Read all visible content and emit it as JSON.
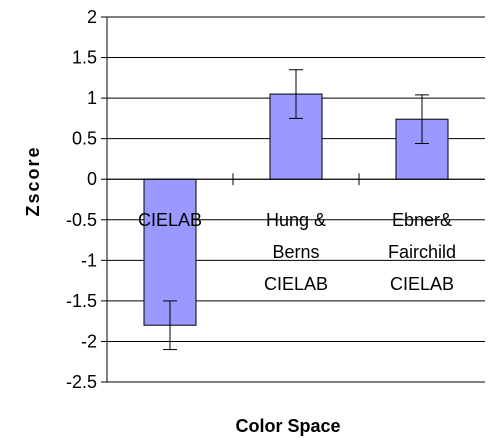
{
  "chart_data": {
    "type": "bar",
    "title": "",
    "xlabel": "Color Space",
    "ylabel": "Zscore",
    "ylim": [
      -2.5,
      2
    ],
    "yticks": [
      2,
      1.5,
      1,
      0.5,
      0,
      -0.5,
      -1,
      -1.5,
      -2,
      -2.5
    ],
    "ytick_labels": [
      "2",
      "1.5",
      "1",
      "0.5",
      "0",
      "-0.5",
      "-1",
      "-1.5",
      "-2",
      "-2.5"
    ],
    "grid": true,
    "legend": "none",
    "bar_color": "#9999FF",
    "categories": [
      [
        "CIELAB"
      ],
      [
        "Hung &",
        "Berns",
        "CIELAB"
      ],
      [
        "Ebner&",
        "Fairchild",
        "CIELAB"
      ]
    ],
    "values": [
      -1.8,
      1.05,
      0.74
    ],
    "error": [
      0.3,
      0.3,
      0.3
    ]
  }
}
